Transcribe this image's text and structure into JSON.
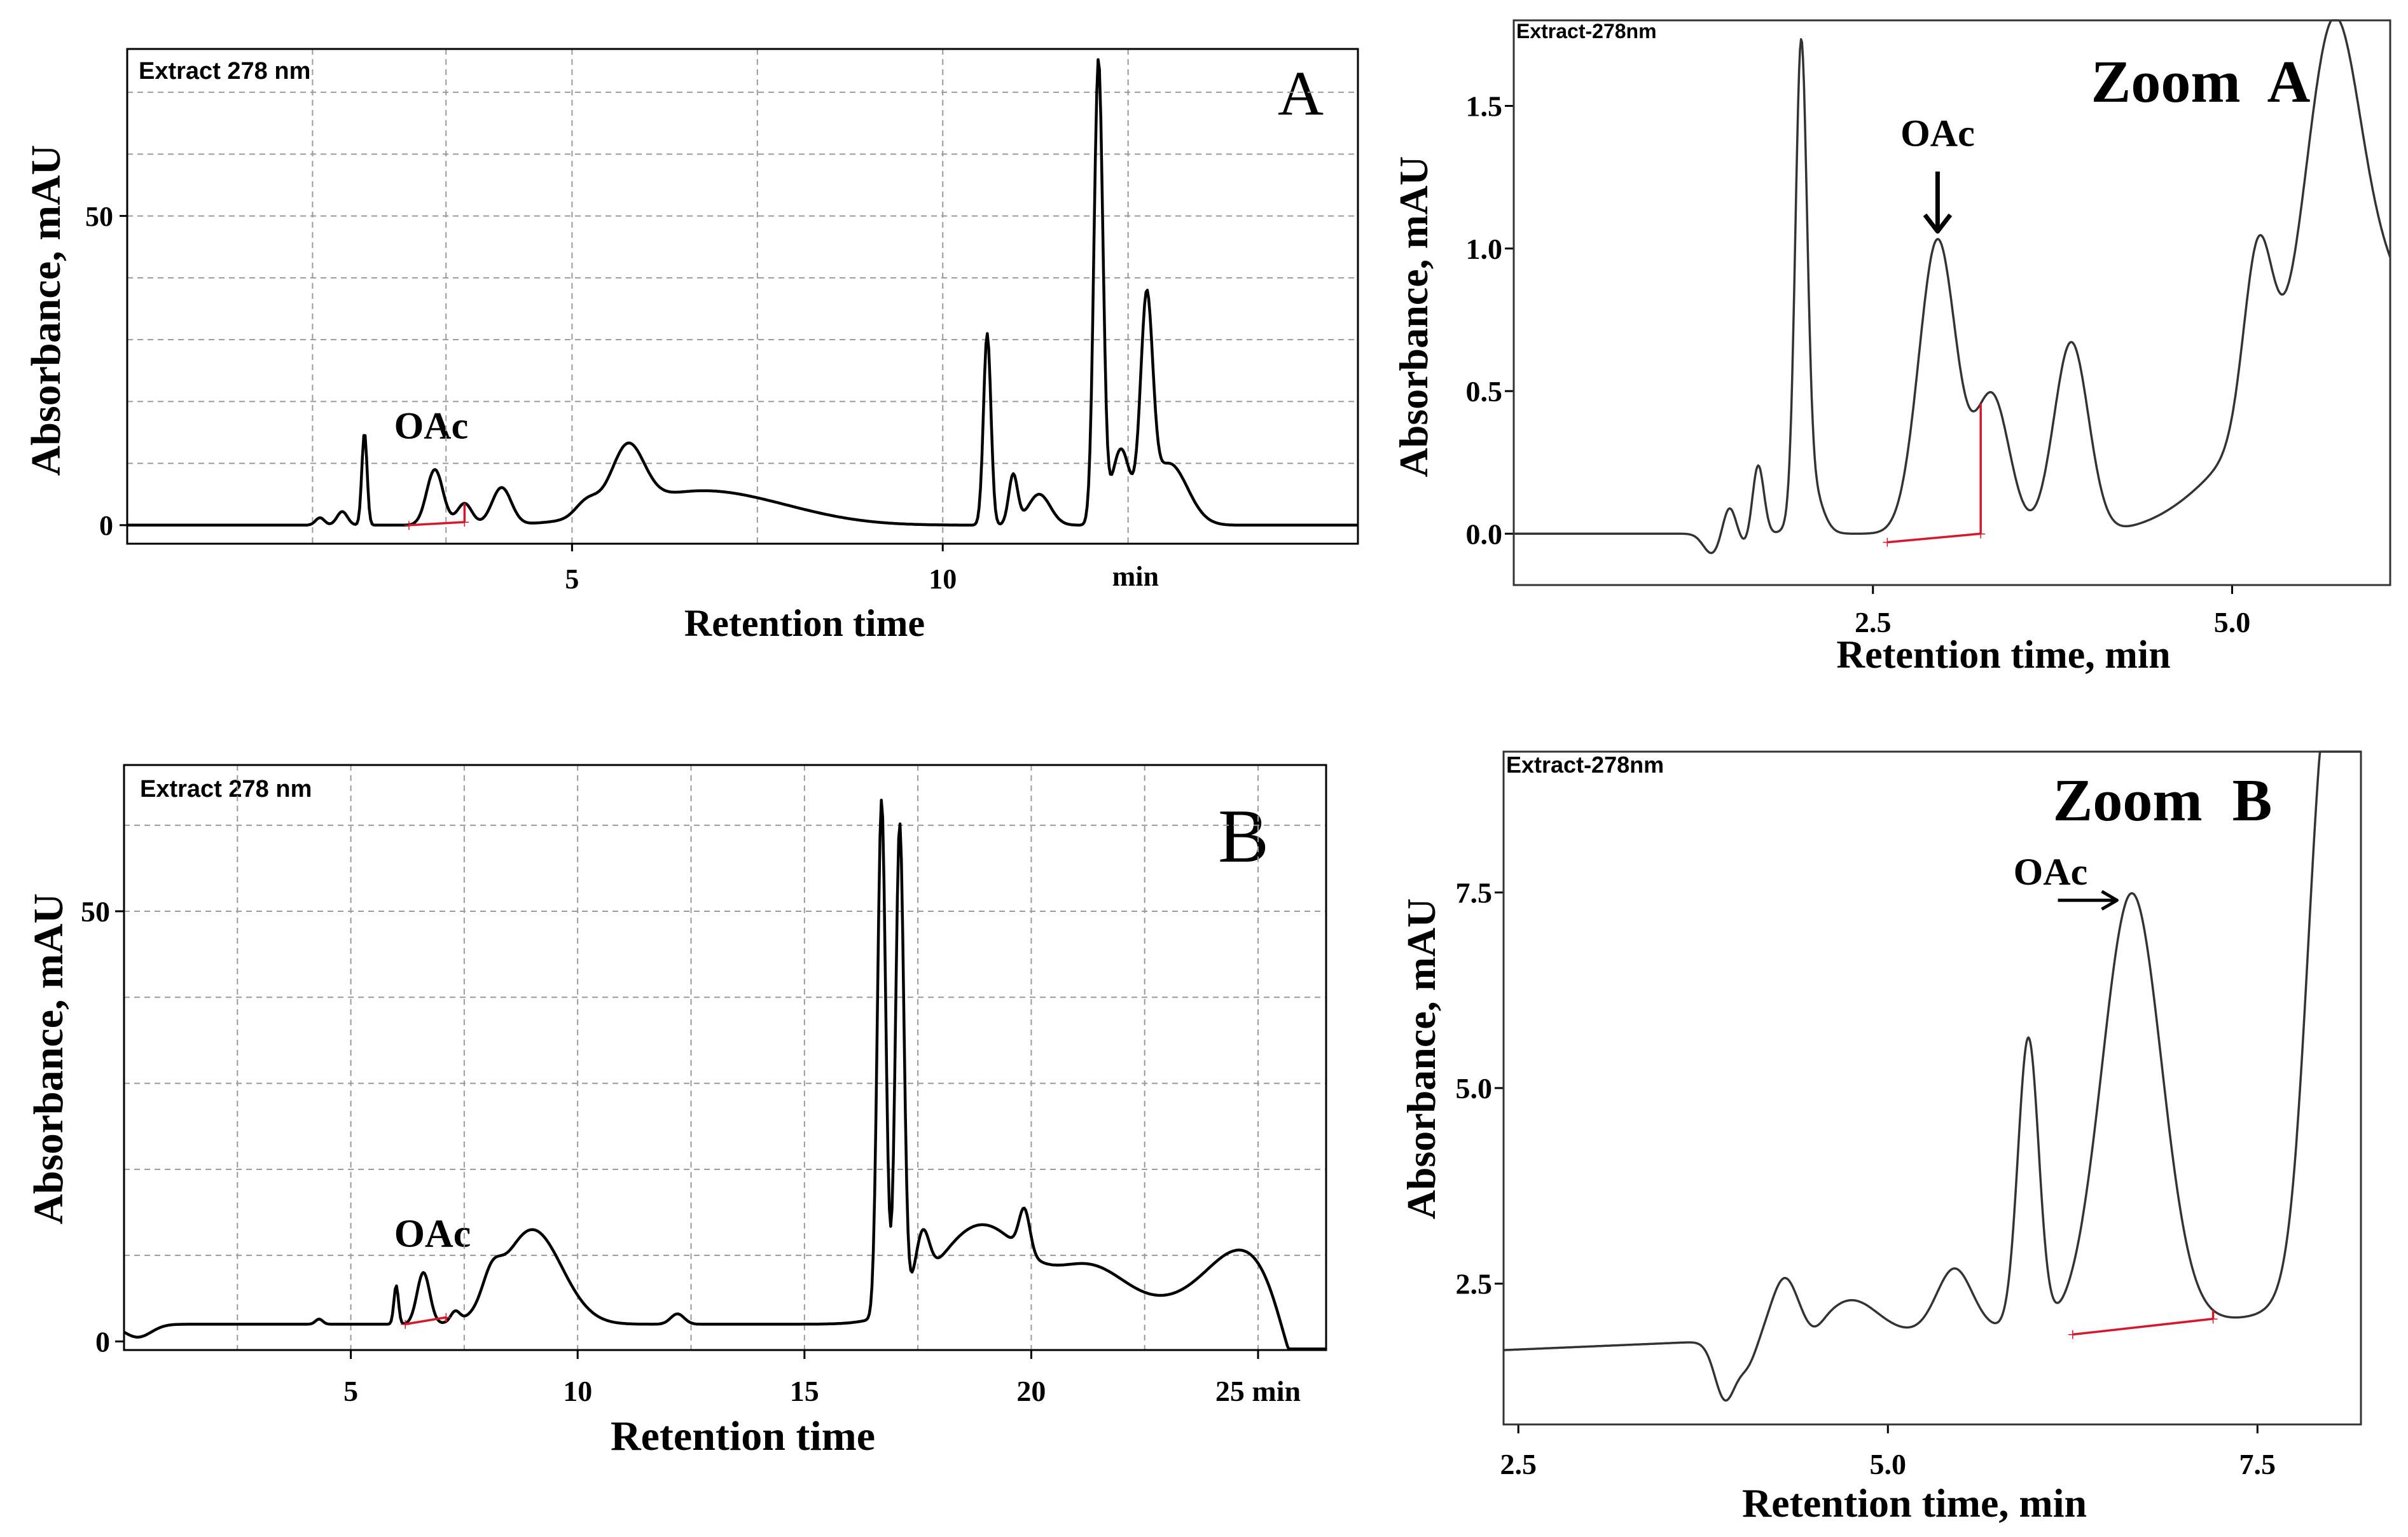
{
  "figure": "HPLC chromatograms at 278 nm with OAc peak integration",
  "chart_data": [
    {
      "id": "A",
      "type": "line",
      "title": "Extract 278 nm",
      "panel_label": "A",
      "xlabel": "Retention time",
      "ylabel": "Absorbance, mAU",
      "xlim": [
        -1,
        15.6
      ],
      "ylim": [
        -3,
        77
      ],
      "x_ticks": [
        5,
        10
      ],
      "x_tick_labels": [
        "5",
        "10"
      ],
      "x_unit_label": "min",
      "x_unit_pos": 12.6,
      "y_ticks": [
        0,
        50
      ],
      "y_tick_labels": [
        "0",
        "50"
      ],
      "x_grid": [
        1.5,
        3.3,
        5,
        7.5,
        10,
        12.5
      ],
      "y_grid": [
        10,
        20,
        30,
        40,
        50,
        60,
        70
      ],
      "baseline": 0,
      "peaks": [
        [
          1.6,
          1.2,
          0.06
        ],
        [
          1.9,
          2.2,
          0.07
        ],
        [
          2.2,
          15,
          0.035
        ],
        [
          3.15,
          9,
          0.11
        ],
        [
          3.55,
          3.5,
          0.1
        ],
        [
          4.05,
          6,
          0.13
        ],
        [
          5.2,
          2.5,
          0.15
        ],
        [
          5.75,
          10,
          0.22
        ],
        [
          6.6,
          5,
          0.9
        ],
        [
          7.8,
          1.5,
          0.8
        ],
        [
          10.6,
          31,
          0.05
        ],
        [
          10.95,
          8,
          0.06
        ],
        [
          11.3,
          5,
          0.15
        ],
        [
          12.1,
          75,
          0.06
        ],
        [
          12.4,
          12,
          0.12
        ],
        [
          12.75,
          33,
          0.08
        ],
        [
          13.05,
          10,
          0.25
        ]
      ],
      "integration": {
        "x1": 2.8,
        "x2": 3.55,
        "y1": 0,
        "y2": 0.5
      },
      "annotations": [
        {
          "text": "OAc",
          "x": 3.1,
          "y": 14
        }
      ]
    },
    {
      "id": "ZA",
      "type": "line",
      "title": "Extract-278nm",
      "panel_label": "Zoom  A",
      "xlabel": "Retention time, min",
      "ylabel": "Absorbance, mAU",
      "xlim": [
        0,
        6.1
      ],
      "ylim": [
        -0.18,
        1.8
      ],
      "x_ticks": [
        2.5,
        5.0
      ],
      "x_tick_labels": [
        "2.5",
        "5.0"
      ],
      "y_ticks": [
        0.0,
        0.5,
        1.0,
        1.5
      ],
      "y_tick_labels": [
        "0.0",
        "0.5",
        "1.0",
        "1.5"
      ],
      "x_grid": [],
      "y_grid": [],
      "baseline": 0,
      "peaks": [
        [
          1.38,
          -0.07,
          0.06
        ],
        [
          1.5,
          0.1,
          0.045
        ],
        [
          1.62,
          -0.04,
          0.05
        ],
        [
          1.7,
          0.25,
          0.04
        ],
        [
          2.0,
          1.57,
          0.04
        ],
        [
          2.05,
          0.2,
          0.08
        ],
        [
          2.95,
          1.03,
          0.13
        ],
        [
          3.33,
          0.48,
          0.12
        ],
        [
          3.88,
          0.67,
          0.12
        ],
        [
          4.8,
          0.02,
          0.3
        ],
        [
          5.18,
          0.62,
          0.1
        ],
        [
          5.7,
          1.18,
          0.19
        ],
        [
          5.55,
          0.5,
          0.5
        ],
        [
          6.2,
          0.6,
          0.3
        ]
      ],
      "integration": {
        "x1": 2.6,
        "x2": 3.25,
        "y1": -0.03,
        "y2": 0.0
      },
      "annotations": [
        {
          "text": "OAc",
          "x": 2.95,
          "y": 1.36
        }
      ],
      "arrow": {
        "direction": "down",
        "x": 2.95,
        "y_from": 1.27,
        "y_to": 1.06
      }
    },
    {
      "id": "B",
      "type": "line",
      "title": "Extract 278 nm",
      "panel_label": "B",
      "xlabel": "Retention time",
      "ylabel": "Absorbance, mAU",
      "xlim": [
        0,
        26.5
      ],
      "ylim": [
        -1,
        67
      ],
      "x_ticks": [
        5,
        10,
        15,
        20,
        25
      ],
      "x_tick_labels": [
        "5",
        "10",
        "15",
        "20",
        "25 min"
      ],
      "y_ticks": [
        0,
        50
      ],
      "y_tick_labels": [
        "0",
        "50"
      ],
      "x_grid": [
        2.5,
        5,
        7.5,
        10,
        12.5,
        15,
        17.5,
        20,
        22.5,
        25
      ],
      "y_grid": [
        10,
        20,
        30,
        40,
        50,
        60
      ],
      "baseline": 2,
      "peaks": [
        [
          0.3,
          -1.5,
          0.3
        ],
        [
          4.3,
          0.6,
          0.08
        ],
        [
          6.0,
          4.5,
          0.05
        ],
        [
          6.6,
          6,
          0.14
        ],
        [
          7.3,
          1.2,
          0.1
        ],
        [
          8.1,
          3,
          0.2
        ],
        [
          9.0,
          11,
          0.65
        ],
        [
          12.2,
          1.2,
          0.15
        ],
        [
          16.7,
          60,
          0.09
        ],
        [
          17.1,
          56,
          0.09
        ],
        [
          17.6,
          6,
          0.15
        ],
        [
          18.9,
          11.5,
          1.0
        ],
        [
          19.85,
          5,
          0.12
        ],
        [
          21.3,
          6,
          0.8
        ],
        [
          23.2,
          2,
          1.0
        ],
        [
          24.7,
          8,
          0.8
        ],
        [
          26.0,
          -9,
          0.45
        ]
      ],
      "integration": {
        "x1": 6.2,
        "x2": 7.1,
        "y1": 2.0,
        "y2": 2.8
      },
      "annotations": [
        {
          "text": "OAc",
          "x": 6.8,
          "y": 11
        }
      ]
    },
    {
      "id": "ZB",
      "type": "line",
      "title": "Extract-278nm",
      "panel_label": "Zoom  B",
      "xlabel": "Retention time, min",
      "ylabel": "Absorbance, mAU",
      "xlim": [
        2.4,
        8.2
      ],
      "ylim": [
        0.7,
        9.3
      ],
      "x_ticks": [
        2.5,
        5.0,
        7.5
      ],
      "x_tick_labels": [
        "2.5",
        "5.0",
        "7.5"
      ],
      "y_ticks": [
        2.5,
        5.0,
        7.5
      ],
      "y_tick_labels": [
        "2.5",
        "5.0",
        "7.5"
      ],
      "x_grid": [],
      "y_grid": [],
      "baseline": 1.65,
      "baseline_slope": 0.08,
      "peaks": [
        [
          3.9,
          -0.75,
          0.07
        ],
        [
          4.05,
          -0.3,
          0.06
        ],
        [
          4.3,
          0.75,
          0.09
        ],
        [
          4.5,
          -0.1,
          0.06
        ],
        [
          4.75,
          0.45,
          0.18
        ],
        [
          5.45,
          0.8,
          0.12
        ],
        [
          5.95,
          3.7,
          0.07
        ],
        [
          6.65,
          5.5,
          0.2
        ],
        [
          7.95,
          5.0,
          0.12
        ],
        [
          8.5,
          15,
          0.3
        ]
      ],
      "integration": {
        "x1": 6.25,
        "x2": 7.2,
        "y1": 1.85,
        "y2": 2.05
      },
      "annotations": [
        {
          "text": "OAc",
          "x": 6.1,
          "y": 7.6
        }
      ],
      "arrow": {
        "direction": "right",
        "y": 7.4,
        "x_from": 6.15,
        "x_to": 6.55
      }
    }
  ]
}
